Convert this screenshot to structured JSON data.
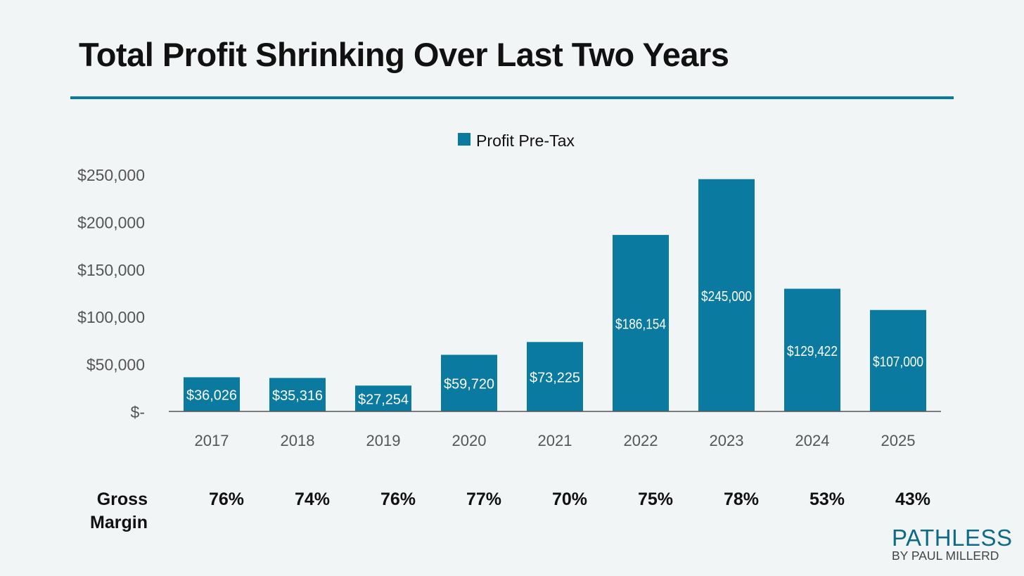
{
  "title": "Total Profit Shrinking Over Last Two Years",
  "chart_data": {
    "type": "bar",
    "title": "Total Profit Shrinking Over Last Two Years",
    "categories": [
      "2017",
      "2018",
      "2019",
      "2020",
      "2021",
      "2022",
      "2023",
      "2024",
      "2025"
    ],
    "series": [
      {
        "name": "Profit Pre-Tax",
        "values": [
          36026,
          35316,
          27254,
          59720,
          73225,
          186154,
          245000,
          129422,
          107000
        ],
        "color": "#0b7aa1"
      }
    ],
    "data_labels": [
      "$36,026",
      "$35,316",
      "$27,254",
      "$59,720",
      "$73,225",
      "$186,154",
      "$245,000",
      "$129,422",
      "$107,000"
    ],
    "ylim": [
      0,
      250000
    ],
    "yticks": [
      0,
      50000,
      100000,
      150000,
      200000,
      250000
    ],
    "ytick_labels": [
      "$-",
      "$50,000",
      "$100,000",
      "$150,000",
      "$200,000",
      "$250,000"
    ],
    "legend": "top-center",
    "grid": false,
    "xlabel": "",
    "ylabel": ""
  },
  "gross_margin": {
    "label_line1": "Gross",
    "label_line2": "Margin",
    "values": [
      "76%",
      "74%",
      "76%",
      "77%",
      "70%",
      "75%",
      "78%",
      "53%",
      "43%"
    ]
  },
  "logo": {
    "line1": "PATHLESS",
    "line2": "BY PAUL MILLERD"
  }
}
